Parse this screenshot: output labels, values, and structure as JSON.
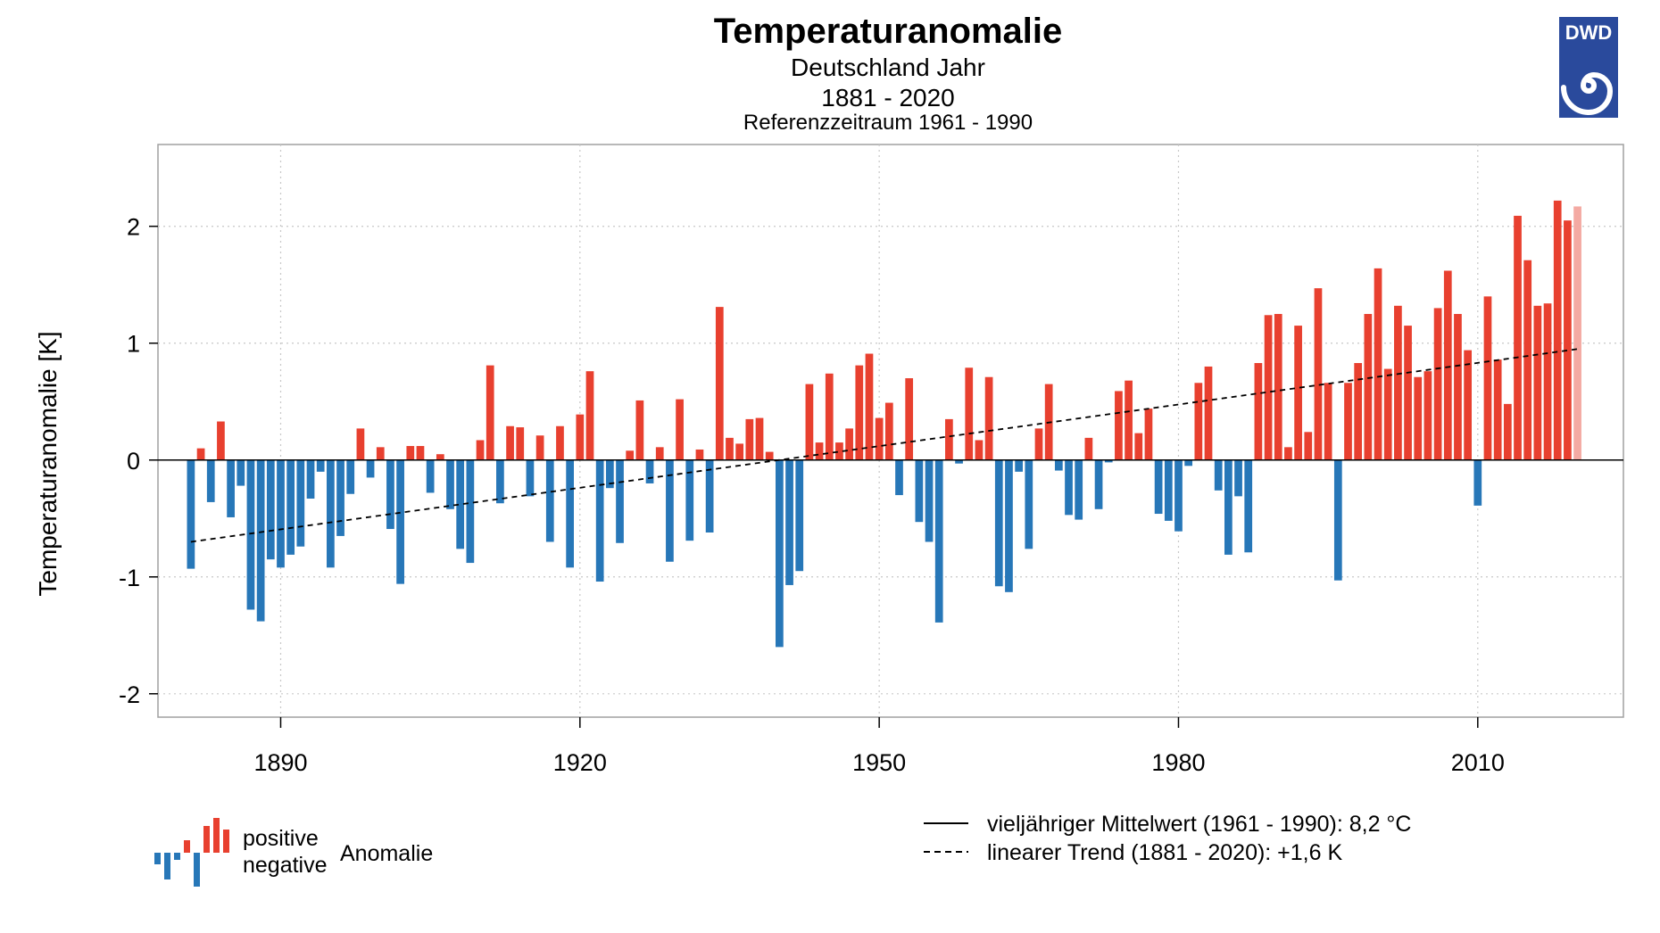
{
  "chart_data": {
    "type": "bar",
    "title": "Temperaturanomalie",
    "subtitle": "Deutschland Jahr",
    "period": "1881 - 2020",
    "reference": "Referenzzeitraum 1961 - 1990",
    "ylabel": "Temperaturanomalie [K]",
    "xlabel": "",
    "ylim": [
      -2.2,
      2.7
    ],
    "xlim": [
      1877.7,
      2024.6
    ],
    "xticks": [
      1890,
      1920,
      1950,
      1980,
      2010
    ],
    "yticks": [
      -2,
      -1,
      0,
      1,
      2
    ],
    "grid": true,
    "colors": {
      "positive": "#e8402f",
      "negative": "#2777b8",
      "last_year": "#f4aaa3",
      "frame": "#a0a0a0",
      "grid": "#c8c8c8",
      "logo_blue": "#2a4a9c"
    },
    "x": [
      1881,
      1882,
      1883,
      1884,
      1885,
      1886,
      1887,
      1888,
      1889,
      1890,
      1891,
      1892,
      1893,
      1894,
      1895,
      1896,
      1897,
      1898,
      1899,
      1900,
      1901,
      1902,
      1903,
      1904,
      1905,
      1906,
      1907,
      1908,
      1909,
      1910,
      1911,
      1912,
      1913,
      1914,
      1915,
      1916,
      1917,
      1918,
      1919,
      1920,
      1921,
      1922,
      1923,
      1924,
      1925,
      1926,
      1927,
      1928,
      1929,
      1930,
      1931,
      1932,
      1933,
      1934,
      1935,
      1936,
      1937,
      1938,
      1939,
      1940,
      1941,
      1942,
      1943,
      1944,
      1945,
      1946,
      1947,
      1948,
      1949,
      1950,
      1951,
      1952,
      1953,
      1954,
      1955,
      1956,
      1957,
      1958,
      1959,
      1960,
      1961,
      1962,
      1963,
      1964,
      1965,
      1966,
      1967,
      1968,
      1969,
      1970,
      1971,
      1972,
      1973,
      1974,
      1975,
      1976,
      1977,
      1978,
      1979,
      1980,
      1981,
      1982,
      1983,
      1984,
      1985,
      1986,
      1987,
      1988,
      1989,
      1990,
      1991,
      1992,
      1993,
      1994,
      1995,
      1996,
      1997,
      1998,
      1999,
      2000,
      2001,
      2002,
      2003,
      2004,
      2005,
      2006,
      2007,
      2008,
      2009,
      2010,
      2011,
      2012,
      2013,
      2014,
      2015,
      2016,
      2017,
      2018,
      2019,
      2020
    ],
    "values": [
      -0.93,
      0.1,
      -0.36,
      0.33,
      -0.49,
      -0.22,
      -1.28,
      -1.38,
      -0.85,
      -0.92,
      -0.81,
      -0.74,
      -0.33,
      -0.1,
      -0.92,
      -0.65,
      -0.29,
      0.27,
      -0.15,
      0.11,
      -0.59,
      -1.06,
      0.12,
      0.12,
      -0.28,
      0.05,
      -0.42,
      -0.76,
      -0.88,
      0.17,
      0.81,
      -0.37,
      0.29,
      0.28,
      -0.31,
      0.21,
      -0.7,
      0.29,
      -0.92,
      0.39,
      0.76,
      -1.04,
      -0.24,
      -0.71,
      0.08,
      0.51,
      -0.2,
      0.11,
      -0.87,
      0.52,
      -0.69,
      0.09,
      -0.62,
      1.31,
      0.19,
      0.14,
      0.35,
      0.36,
      0.07,
      -1.6,
      -1.07,
      -0.95,
      0.65,
      0.15,
      0.74,
      0.15,
      0.27,
      0.81,
      0.91,
      0.36,
      0.49,
      -0.3,
      0.7,
      -0.53,
      -0.7,
      -1.39,
      0.35,
      -0.03,
      0.79,
      0.17,
      0.71,
      -1.08,
      -1.13,
      -0.1,
      -0.76,
      0.27,
      0.65,
      -0.09,
      -0.47,
      -0.51,
      0.19,
      -0.42,
      -0.02,
      0.59,
      0.68,
      0.23,
      0.44,
      -0.46,
      -0.52,
      -0.61,
      -0.05,
      0.66,
      0.8,
      -0.26,
      -0.81,
      -0.31,
      -0.79,
      0.83,
      1.24,
      1.25,
      0.11,
      1.15,
      0.24,
      1.47,
      0.66,
      -1.03,
      0.66,
      0.83,
      1.25,
      1.64,
      0.78,
      1.32,
      1.15,
      0.71,
      0.76,
      1.3,
      1.62,
      1.25,
      0.94,
      -0.39,
      1.4,
      0.86,
      0.48,
      2.09,
      1.71,
      1.32,
      1.34,
      2.22,
      2.05,
      2.17
    ],
    "trend": {
      "start": -0.7,
      "end": 0.95
    },
    "legend": {
      "positive_label": "positive",
      "negative_label": "negative",
      "anomaly_label": "Anomalie",
      "mean_label": "vieljähriger Mittelwert (1961 - 1990): 8,2 °C",
      "trend_label": "linearer Trend (1881 - 2020): +1,6 K"
    }
  },
  "logo": {
    "text": "DWD"
  }
}
